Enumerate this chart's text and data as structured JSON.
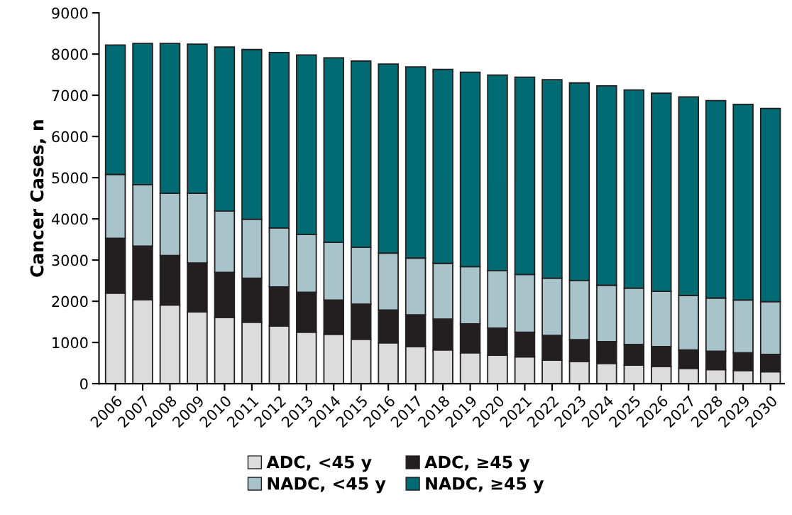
{
  "chart_data": {
    "type": "bar",
    "stacked": true,
    "ylabel": "Cancer Cases, n",
    "categories": [
      "2006",
      "2007",
      "2008",
      "2009",
      "2010",
      "2011",
      "2012",
      "2013",
      "2014",
      "2015",
      "2016",
      "2017",
      "2018",
      "2019",
      "2020",
      "2021",
      "2022",
      "2023",
      "2024",
      "2025",
      "2026",
      "2027",
      "2028",
      "2029",
      "2030"
    ],
    "series": [
      {
        "name": "ADC, <45 y",
        "color": "#dcdcdc",
        "values": [
          2200,
          2040,
          1910,
          1740,
          1610,
          1490,
          1400,
          1250,
          1200,
          1080,
          990,
          900,
          820,
          750,
          690,
          650,
          570,
          540,
          490,
          450,
          420,
          370,
          340,
          320,
          290
        ]
      },
      {
        "name": "ADC, ≥45 y",
        "color": "#231f20",
        "values": [
          1330,
          1300,
          1200,
          1190,
          1090,
          1070,
          950,
          970,
          830,
          850,
          800,
          770,
          750,
          700,
          660,
          600,
          600,
          530,
          530,
          500,
          480,
          450,
          450,
          430,
          420
        ]
      },
      {
        "name": "NADC, <45 y",
        "color": "#a8c4ca",
        "values": [
          1550,
          1490,
          1510,
          1690,
          1490,
          1430,
          1430,
          1400,
          1400,
          1380,
          1380,
          1380,
          1350,
          1390,
          1390,
          1400,
          1390,
          1430,
          1370,
          1370,
          1340,
          1320,
          1290,
          1280,
          1280
        ]
      },
      {
        "name": "NADC, ≥45 y",
        "color": "#006b73",
        "values": [
          3140,
          3430,
          3640,
          3620,
          3980,
          4120,
          4260,
          4360,
          4480,
          4520,
          4590,
          4640,
          4710,
          4720,
          4750,
          4790,
          4820,
          4800,
          4840,
          4810,
          4810,
          4820,
          4790,
          4750,
          4690
        ]
      }
    ],
    "ylim": [
      0,
      9000
    ],
    "yticks": [
      0,
      1000,
      2000,
      3000,
      4000,
      5000,
      6000,
      7000,
      8000,
      9000
    ],
    "grid": false,
    "legend": "bottom"
  }
}
